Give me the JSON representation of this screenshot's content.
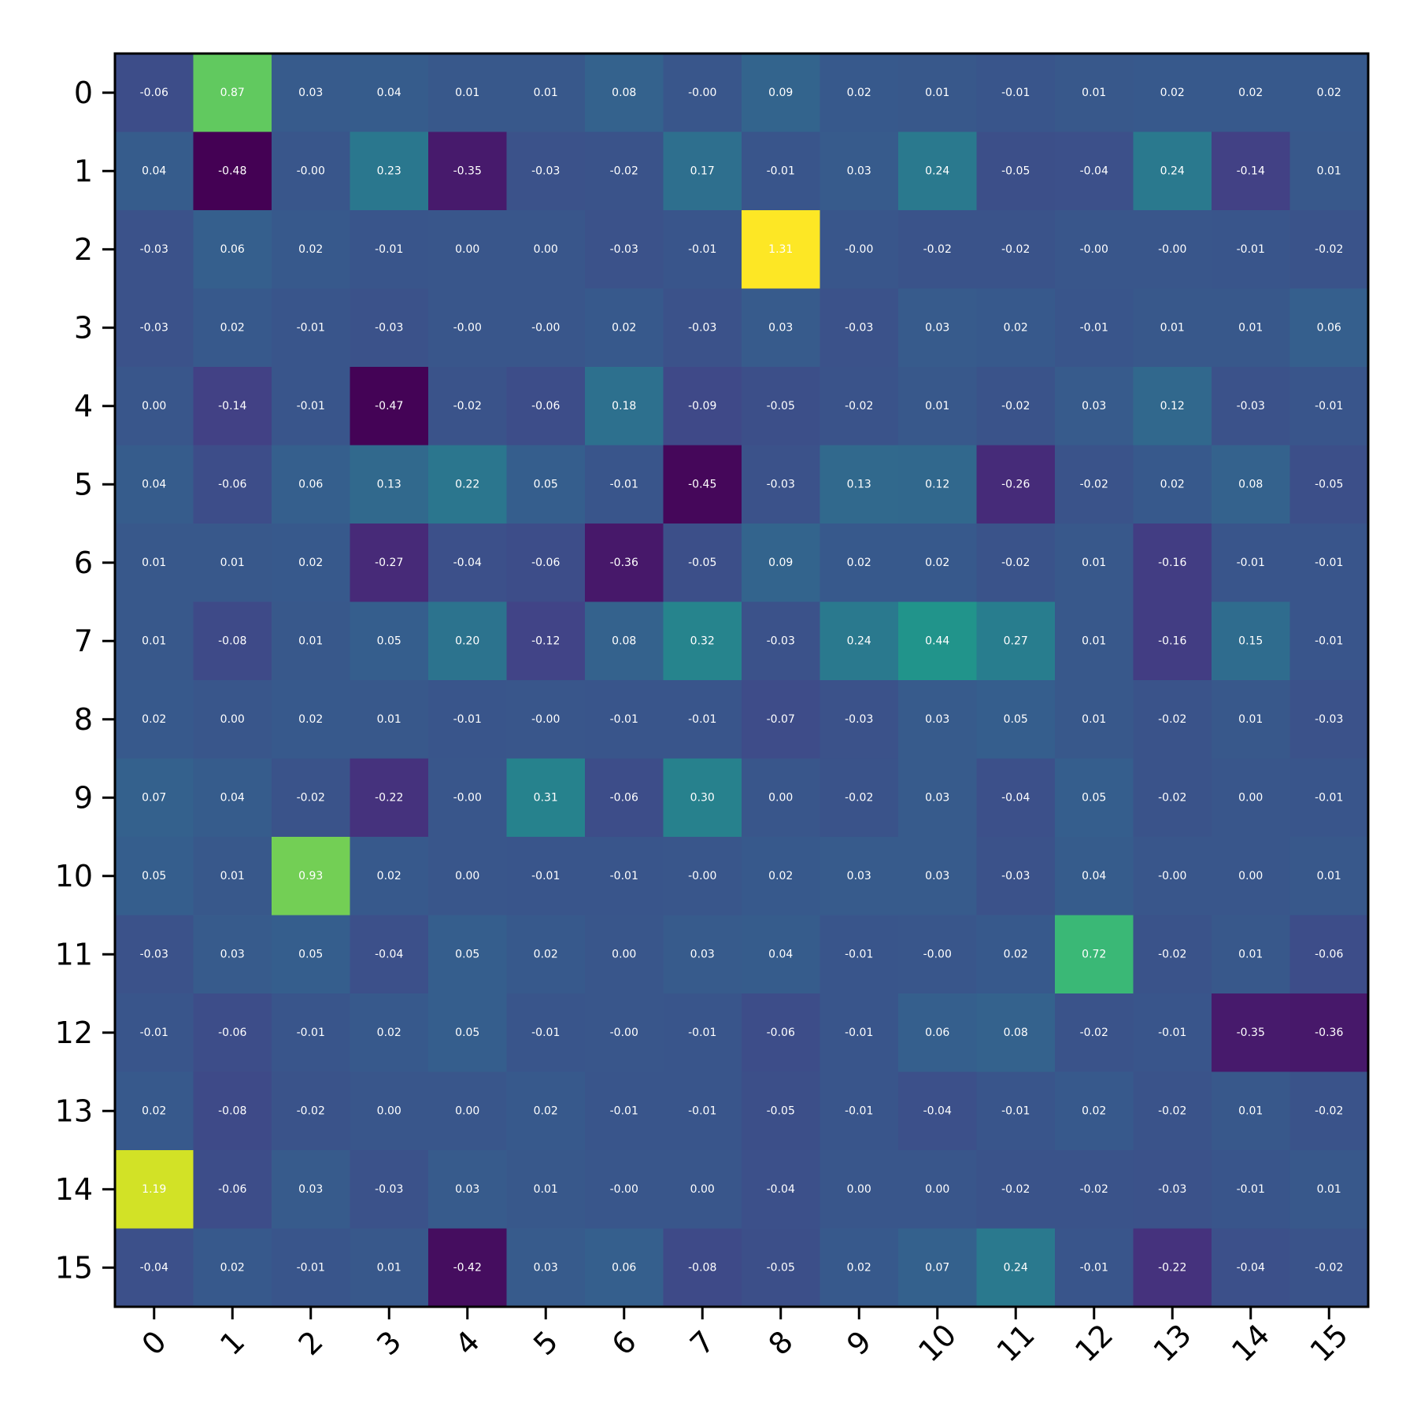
{
  "chart_data": {
    "type": "heatmap",
    "title": "",
    "xlabel": "",
    "ylabel": "",
    "x_ticks": [
      "0",
      "1",
      "2",
      "3",
      "4",
      "5",
      "6",
      "7",
      "8",
      "9",
      "10",
      "11",
      "12",
      "13",
      "14",
      "15"
    ],
    "y_ticks": [
      "0",
      "1",
      "2",
      "3",
      "4",
      "5",
      "6",
      "7",
      "8",
      "9",
      "10",
      "11",
      "12",
      "13",
      "14",
      "15"
    ],
    "colormap": "viridis",
    "value_range": [
      -0.48,
      1.31
    ],
    "grid": false,
    "legend": "none",
    "cell_text_color": "#ffffff",
    "values": [
      [
        -0.06,
        0.87,
        0.03,
        0.04,
        0.01,
        0.01,
        0.08,
        -0.0,
        0.09,
        0.02,
        0.01,
        -0.01,
        0.01,
        0.02,
        0.02,
        0.02
      ],
      [
        0.04,
        -0.48,
        -0.0,
        0.23,
        -0.35,
        -0.03,
        -0.02,
        0.17,
        -0.01,
        0.03,
        0.24,
        -0.05,
        -0.04,
        0.24,
        -0.14,
        0.01
      ],
      [
        -0.03,
        0.06,
        0.02,
        -0.01,
        0.0,
        0.0,
        -0.03,
        -0.01,
        1.31,
        -0.0,
        -0.02,
        -0.02,
        -0.0,
        -0.0,
        -0.01,
        -0.02
      ],
      [
        -0.03,
        0.02,
        -0.01,
        -0.03,
        -0.0,
        -0.0,
        0.02,
        -0.03,
        0.03,
        -0.03,
        0.03,
        0.02,
        -0.01,
        0.01,
        0.01,
        0.06
      ],
      [
        0.0,
        -0.14,
        -0.01,
        -0.47,
        -0.02,
        -0.06,
        0.18,
        -0.09,
        -0.05,
        -0.02,
        0.01,
        -0.02,
        0.03,
        0.12,
        -0.03,
        -0.01
      ],
      [
        0.04,
        -0.06,
        0.06,
        0.13,
        0.22,
        0.05,
        -0.01,
        -0.45,
        -0.03,
        0.13,
        0.12,
        -0.26,
        -0.02,
        0.02,
        0.08,
        -0.05
      ],
      [
        0.01,
        0.01,
        0.02,
        -0.27,
        -0.04,
        -0.06,
        -0.36,
        -0.05,
        0.09,
        0.02,
        0.02,
        -0.02,
        0.01,
        -0.16,
        -0.01,
        -0.01
      ],
      [
        0.01,
        -0.08,
        0.01,
        0.05,
        0.2,
        -0.12,
        0.08,
        0.32,
        -0.03,
        0.24,
        0.44,
        0.27,
        0.01,
        -0.16,
        0.15,
        -0.01
      ],
      [
        0.02,
        0.0,
        0.02,
        0.01,
        -0.01,
        -0.0,
        -0.01,
        -0.01,
        -0.07,
        -0.03,
        0.03,
        0.05,
        0.01,
        -0.02,
        0.01,
        -0.03
      ],
      [
        0.07,
        0.04,
        -0.02,
        -0.22,
        -0.0,
        0.31,
        -0.06,
        0.3,
        0.0,
        -0.02,
        0.03,
        -0.04,
        0.05,
        -0.02,
        0.0,
        -0.01
      ],
      [
        0.05,
        0.01,
        0.93,
        0.02,
        0.0,
        -0.01,
        -0.01,
        -0.0,
        0.02,
        0.03,
        0.03,
        -0.03,
        0.04,
        -0.0,
        0.0,
        0.01
      ],
      [
        -0.03,
        0.03,
        0.05,
        -0.04,
        0.05,
        0.02,
        0.0,
        0.03,
        0.04,
        -0.01,
        -0.0,
        0.02,
        0.72,
        -0.02,
        0.01,
        -0.06
      ],
      [
        -0.01,
        -0.06,
        -0.01,
        0.02,
        0.05,
        -0.01,
        -0.0,
        -0.01,
        -0.06,
        -0.01,
        0.06,
        0.08,
        -0.02,
        -0.01,
        -0.35,
        -0.36
      ],
      [
        0.02,
        -0.08,
        -0.02,
        0.0,
        0.0,
        0.02,
        -0.01,
        -0.01,
        -0.05,
        -0.01,
        -0.04,
        -0.01,
        0.02,
        -0.02,
        0.01,
        -0.02
      ],
      [
        1.19,
        -0.06,
        0.03,
        -0.03,
        0.03,
        0.01,
        -0.0,
        0.0,
        -0.04,
        0.0,
        0.0,
        -0.02,
        -0.02,
        -0.03,
        -0.01,
        0.01
      ],
      [
        -0.04,
        0.02,
        -0.01,
        0.01,
        -0.42,
        0.03,
        0.06,
        -0.08,
        -0.05,
        0.02,
        0.07,
        0.24,
        -0.01,
        -0.22,
        -0.04,
        -0.02
      ]
    ]
  }
}
